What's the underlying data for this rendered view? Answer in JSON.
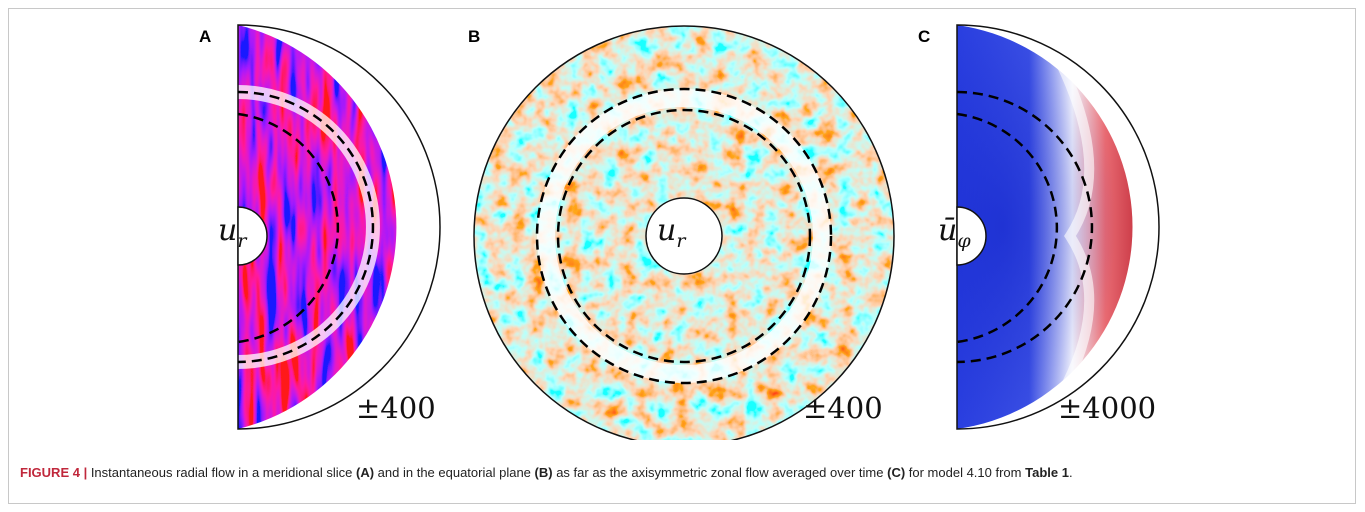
{
  "figure": {
    "panels": [
      {
        "letter": "A",
        "variable": "u",
        "subscript": "r",
        "scale": "±400"
      },
      {
        "letter": "B",
        "variable": "u",
        "subscript": "r",
        "scale": "±400"
      },
      {
        "letter": "C",
        "variable": "ū",
        "subscript": "φ",
        "scale": "±4000"
      }
    ],
    "colors": {
      "positive": "#c8102e",
      "negative": "#1f2fd6",
      "zero": "#ffffff"
    }
  },
  "caption": {
    "label": "FIGURE 4 |",
    "part1": " Instantaneous radial flow in a meridional slice ",
    "ref_a": "(A)",
    "part2": " and in the equatorial plane ",
    "ref_b": "(B)",
    "part3": " as far as the axisymmetric zonal flow averaged over time ",
    "ref_c": "(C)",
    "part4": " for model 4.10 from ",
    "table_ref": "Table 1",
    "part5": "."
  }
}
